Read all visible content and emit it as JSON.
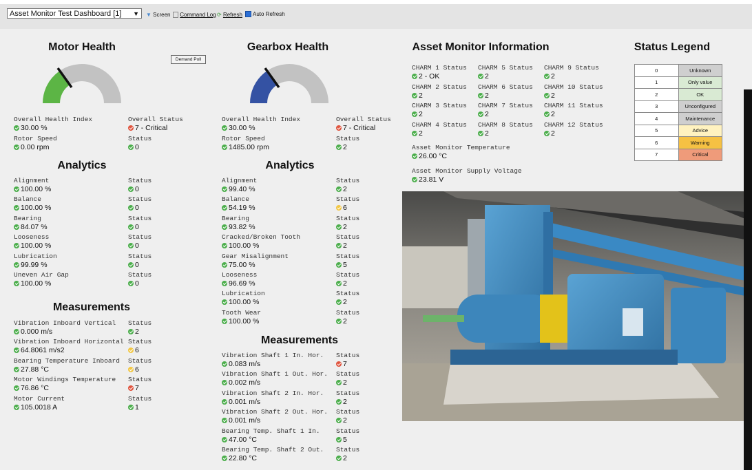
{
  "toolbar": {
    "dashboard": "Asset Monitor Test Dashboard [1]",
    "screen": "Screen",
    "command_log": "Command Log",
    "refresh": "Refresh",
    "auto_refresh": "Auto Refresh"
  },
  "motor": {
    "title": "Motor Health",
    "button": "Demand Poll",
    "overview": [
      {
        "metric": {
          "label": "Overall Health Index",
          "value": "30.00 %",
          "icon": "#4cae4c"
        },
        "status": {
          "label": "Overall Status",
          "value": "7 - Critical",
          "icon": "#e0553f"
        }
      },
      {
        "metric": {
          "label": "Rotor Speed",
          "value": "0.00 rpm",
          "icon": "#4cae4c"
        },
        "status": {
          "label": "Status",
          "value": "0",
          "icon": "#4cae4c"
        }
      }
    ],
    "analytics": {
      "title": "Analytics",
      "rows": [
        {
          "metric": {
            "label": "Alignment",
            "value": "100.00 %",
            "icon": "#4cae4c"
          },
          "status": {
            "label": "Status",
            "value": "0",
            "icon": "#4cae4c"
          }
        },
        {
          "metric": {
            "label": "Balance",
            "value": "100.00 %",
            "icon": "#4cae4c"
          },
          "status": {
            "label": "Status",
            "value": "0",
            "icon": "#4cae4c"
          }
        },
        {
          "metric": {
            "label": "Bearing",
            "value": "84.07 %",
            "icon": "#4cae4c"
          },
          "status": {
            "label": "Status",
            "value": "0",
            "icon": "#4cae4c"
          }
        },
        {
          "metric": {
            "label": "Looseness",
            "value": "100.00 %",
            "icon": "#4cae4c"
          },
          "status": {
            "label": "Status",
            "value": "0",
            "icon": "#4cae4c"
          }
        },
        {
          "metric": {
            "label": "Lubrication",
            "value": "99.99 %",
            "icon": "#4cae4c"
          },
          "status": {
            "label": "Status",
            "value": "0",
            "icon": "#4cae4c"
          }
        },
        {
          "metric": {
            "label": "Uneven Air Gap",
            "value": "100.00 %",
            "icon": "#4cae4c"
          },
          "status": {
            "label": "Status",
            "value": "0",
            "icon": "#4cae4c"
          }
        }
      ]
    },
    "measurements": {
      "title": "Measurements",
      "rows": [
        {
          "metric": {
            "label": "Vibration Inboard Vertical",
            "value": "0.000 m/s",
            "icon": "#4cae4c"
          },
          "status": {
            "label": "Status",
            "value": "2",
            "icon": "#4cae4c"
          }
        },
        {
          "metric": {
            "label": "Vibration Inboard Horizontal",
            "value": "64.8061 m/s2",
            "icon": "#4cae4c"
          },
          "status": {
            "label": "Status",
            "value": "6",
            "icon": "#f2c744"
          }
        },
        {
          "metric": {
            "label": "Bearing Temperature Inboard",
            "value": "27.88 °C",
            "icon": "#4cae4c"
          },
          "status": {
            "label": "Status",
            "value": "6",
            "icon": "#f2c744"
          }
        },
        {
          "metric": {
            "label": "Motor Windings Temperature",
            "value": "76.86 °C",
            "icon": "#4cae4c"
          },
          "status": {
            "label": "Status",
            "value": "7",
            "icon": "#e0553f"
          }
        },
        {
          "metric": {
            "label": "Motor Current",
            "value": "105.0018 A",
            "icon": "#4cae4c"
          },
          "status": {
            "label": "Status",
            "value": "1",
            "icon": "#4cae4c"
          }
        }
      ]
    }
  },
  "gearbox": {
    "title": "Gearbox Health",
    "overview": [
      {
        "metric": {
          "label": "Overall Health Index",
          "value": "30.00 %",
          "icon": "#4cae4c"
        },
        "status": {
          "label": "Overall Status",
          "value": "7 - Critical",
          "icon": "#e0553f"
        }
      },
      {
        "metric": {
          "label": "Rotor Speed",
          "value": "1485.00 rpm",
          "icon": "#4cae4c"
        },
        "status": {
          "label": "Status",
          "value": "2",
          "icon": "#4cae4c"
        }
      }
    ],
    "analytics": {
      "title": "Analytics",
      "rows": [
        {
          "metric": {
            "label": "Alignment",
            "value": "99.40 %",
            "icon": "#4cae4c"
          },
          "status": {
            "label": "Status",
            "value": "2",
            "icon": "#4cae4c"
          }
        },
        {
          "metric": {
            "label": "Balance",
            "value": "54.19 %",
            "icon": "#4cae4c"
          },
          "status": {
            "label": "Status",
            "value": "6",
            "icon": "#f2c744"
          }
        },
        {
          "metric": {
            "label": "Bearing",
            "value": "93.82 %",
            "icon": "#4cae4c"
          },
          "status": {
            "label": "Status",
            "value": "2",
            "icon": "#4cae4c"
          }
        },
        {
          "metric": {
            "label": "Cracked/Broken Tooth",
            "value": "100.00 %",
            "icon": "#4cae4c"
          },
          "status": {
            "label": "Status",
            "value": "2",
            "icon": "#4cae4c"
          }
        },
        {
          "metric": {
            "label": "Gear Misalignment",
            "value": "75.00 %",
            "icon": "#4cae4c"
          },
          "status": {
            "label": "Status",
            "value": "5",
            "icon": "#4cae4c"
          }
        },
        {
          "metric": {
            "label": "Looseness",
            "value": "96.69 %",
            "icon": "#4cae4c"
          },
          "status": {
            "label": "Status",
            "value": "2",
            "icon": "#4cae4c"
          }
        },
        {
          "metric": {
            "label": "Lubrication",
            "value": "100.00 %",
            "icon": "#4cae4c"
          },
          "status": {
            "label": "Status",
            "value": "2",
            "icon": "#4cae4c"
          }
        },
        {
          "metric": {
            "label": "Tooth Wear",
            "value": "100.00 %",
            "icon": "#4cae4c"
          },
          "status": {
            "label": "Status",
            "value": "2",
            "icon": "#4cae4c"
          }
        }
      ]
    },
    "measurements": {
      "title": "Measurements",
      "rows": [
        {
          "metric": {
            "label": "Vibration Shaft 1 In. Hor.",
            "value": "0.083 m/s",
            "icon": "#4cae4c"
          },
          "status": {
            "label": "Status",
            "value": "7",
            "icon": "#e0553f"
          }
        },
        {
          "metric": {
            "label": "Vibration Shaft 1 Out. Hor.",
            "value": "0.002 m/s",
            "icon": "#4cae4c"
          },
          "status": {
            "label": "Status",
            "value": "2",
            "icon": "#4cae4c"
          }
        },
        {
          "metric": {
            "label": "Vibration Shaft 2 In. Hor.",
            "value": "0.001 m/s",
            "icon": "#4cae4c"
          },
          "status": {
            "label": "Status",
            "value": "2",
            "icon": "#4cae4c"
          }
        },
        {
          "metric": {
            "label": "Vibration Shaft 2 Out. Hor.",
            "value": "0.001 m/s",
            "icon": "#4cae4c"
          },
          "status": {
            "label": "Status",
            "value": "2",
            "icon": "#4cae4c"
          }
        },
        {
          "metric": {
            "label": "Bearing Temp. Shaft 1 In.",
            "value": "47.00 °C",
            "icon": "#4cae4c"
          },
          "status": {
            "label": "Status",
            "value": "5",
            "icon": "#4cae4c"
          }
        },
        {
          "metric": {
            "label": "Bearing Temp. Shaft 2 Out.",
            "value": "22.80 °C",
            "icon": "#4cae4c"
          },
          "status": {
            "label": "Status",
            "value": "2",
            "icon": "#4cae4c"
          }
        }
      ]
    }
  },
  "asset_info": {
    "title": "Asset Monitor Information",
    "charms": [
      {
        "label": "CHARM 1 Status",
        "value": "2 - OK",
        "icon": "#4cae4c"
      },
      {
        "label": "CHARM 2 Status",
        "value": "2",
        "icon": "#4cae4c"
      },
      {
        "label": "CHARM 3 Status",
        "value": "2",
        "icon": "#4cae4c"
      },
      {
        "label": "CHARM 4 Status",
        "value": "2",
        "icon": "#4cae4c"
      },
      {
        "label": "CHARM 5 Status",
        "value": "2",
        "icon": "#4cae4c"
      },
      {
        "label": "CHARM 6 Status",
        "value": "2",
        "icon": "#4cae4c"
      },
      {
        "label": "CHARM 7 Status",
        "value": "2",
        "icon": "#4cae4c"
      },
      {
        "label": "CHARM 8 Status",
        "value": "2",
        "icon": "#4cae4c"
      },
      {
        "label": "CHARM 9 Status",
        "value": "2",
        "icon": "#4cae4c"
      },
      {
        "label": "CHARM 10 Status",
        "value": "2",
        "icon": "#4cae4c"
      },
      {
        "label": "CHARM 11 Status",
        "value": "2",
        "icon": "#4cae4c"
      },
      {
        "label": "CHARM 12 Status",
        "value": "2",
        "icon": "#4cae4c"
      }
    ],
    "temperature": {
      "label": "Asset Monitor Temperature",
      "value": "26.00 °C",
      "icon": "#4cae4c"
    },
    "voltage": {
      "label": "Asset Monitor Supply Voltage",
      "value": "23.81 V",
      "icon": "#4cae4c"
    }
  },
  "legend": {
    "title": "Status Legend",
    "rows": [
      {
        "code": 0,
        "text": "Unknown",
        "color": "#cfcfcf"
      },
      {
        "code": 1,
        "text": "Only value",
        "color": "#d9ead3"
      },
      {
        "code": 2,
        "text": "OK",
        "color": "#d9ead3"
      },
      {
        "code": 3,
        "text": "Unconfigured",
        "color": "#cfcfcf"
      },
      {
        "code": 4,
        "text": "Maintenance",
        "color": "#cfcfcf"
      },
      {
        "code": 5,
        "text": "Advice",
        "color": "#fff2c0"
      },
      {
        "code": 6,
        "text": "Warning",
        "color": "#f6c143"
      },
      {
        "code": 7,
        "text": "Critical",
        "color": "#ef9b7a"
      }
    ]
  }
}
